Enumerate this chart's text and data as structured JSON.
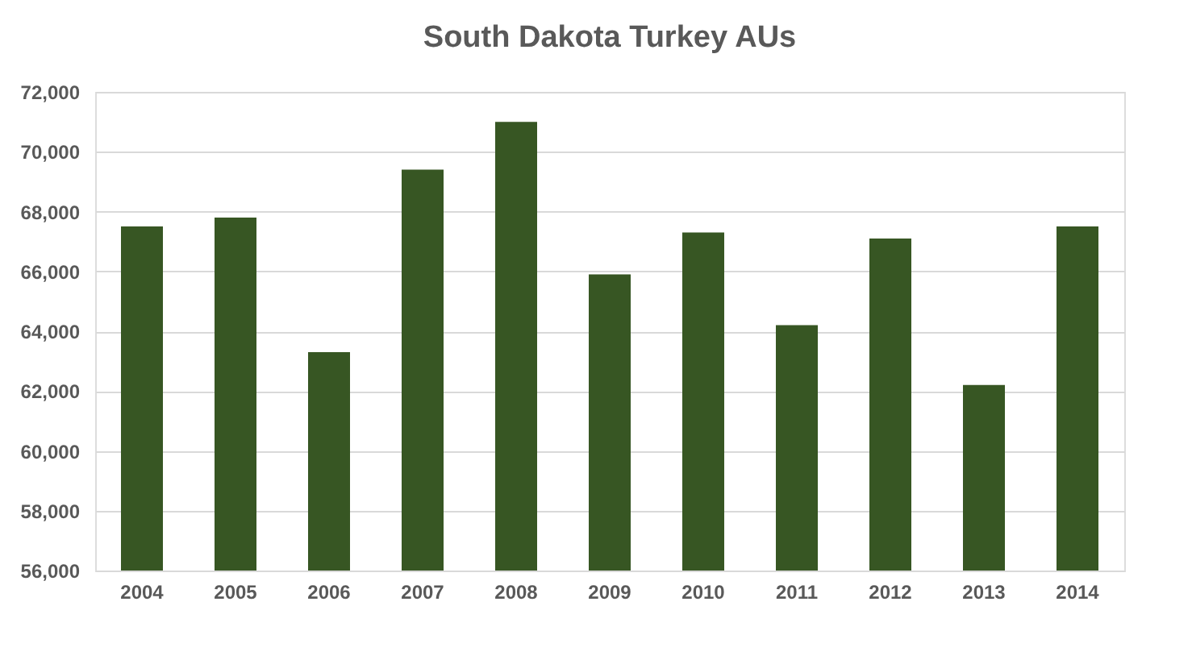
{
  "chart_data": {
    "type": "bar",
    "title": "South Dakota Turkey AUs",
    "categories": [
      "2004",
      "2005",
      "2006",
      "2007",
      "2008",
      "2009",
      "2010",
      "2011",
      "2012",
      "2013",
      "2014"
    ],
    "values": [
      67500,
      67800,
      63300,
      69400,
      71000,
      65900,
      67300,
      64200,
      67100,
      62200,
      67500
    ],
    "color": "#375623",
    "ylim": [
      56000,
      72000
    ],
    "yticks": [
      {
        "value": 56000,
        "label": "56,000"
      },
      {
        "value": 58000,
        "label": "58,000"
      },
      {
        "value": 60000,
        "label": "60,000"
      },
      {
        "value": 62000,
        "label": "62,000"
      },
      {
        "value": 64000,
        "label": "64,000"
      },
      {
        "value": 66000,
        "label": "66,000"
      },
      {
        "value": 68000,
        "label": "68,000"
      },
      {
        "value": 70000,
        "label": "70,000"
      },
      {
        "value": 72000,
        "label": "72,000"
      }
    ],
    "grid": "y"
  }
}
